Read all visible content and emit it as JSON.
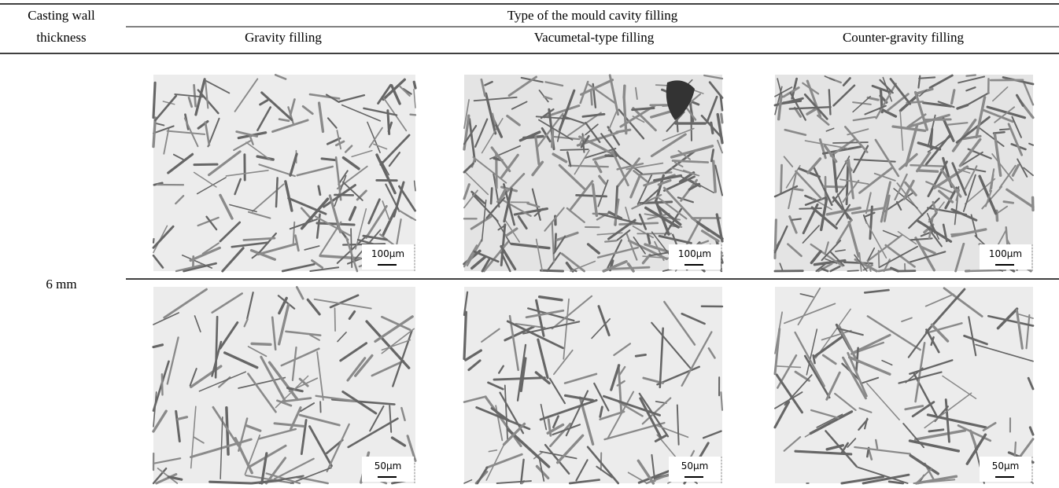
{
  "header": {
    "row_label": "Casting wall thickness",
    "group": "Type of the mould cavity filling",
    "columns": [
      "Gravity filling",
      "Vacumetal-type filling",
      "Counter-gravity filling"
    ]
  },
  "rows": [
    {
      "label": "6 mm"
    }
  ],
  "image_rows": [
    [
      "100µm",
      "100µm",
      "100µm"
    ],
    [
      "50µm",
      "50µm",
      "50µm"
    ]
  ]
}
